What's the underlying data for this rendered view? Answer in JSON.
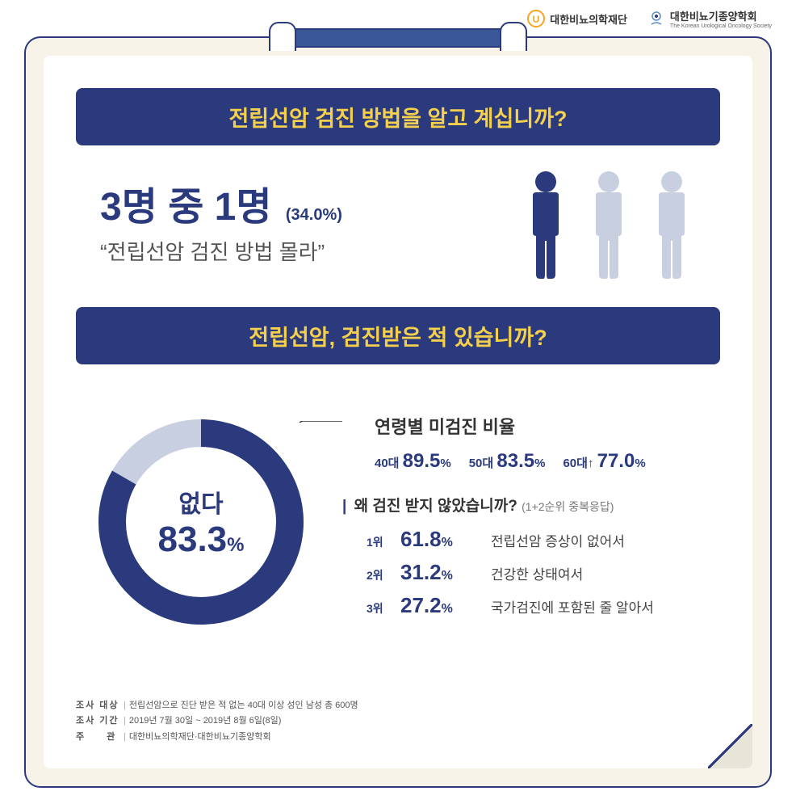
{
  "logos": {
    "left": {
      "name": "대한비뇨의학재단",
      "icon_color": "#f5a623",
      "icon_letter": "U"
    },
    "right": {
      "name": "대한비뇨기종양학회",
      "sub": "The Korean Urological Oncology Society",
      "icon_color": "#5a8fc7"
    }
  },
  "banner1": "전립선암 검진 방법을 알고 계십니까?",
  "section1": {
    "headline": "3명 중 1명",
    "percent": "(34.0%)",
    "quote": "“전립선암 검진 방법 몰라”",
    "people": {
      "count": 3,
      "filled": 1,
      "filled_color": "#2a3a7c",
      "empty_color": "#c8cfe0"
    }
  },
  "banner2": "전립선암, 검진받은 적 있습니까?",
  "donut": {
    "label": "없다",
    "value": "83.3",
    "unit": "%",
    "percentage": 83.3,
    "fill_color": "#2a3a7c",
    "empty_color": "#c8cfe0",
    "stroke_width": 34
  },
  "age_stats": {
    "heading": "연령별 미검진 비율",
    "items": [
      {
        "label": "40대",
        "value": "89.5",
        "unit": "%"
      },
      {
        "label": "50대",
        "value": "83.5",
        "unit": "%"
      },
      {
        "label": "60대↑",
        "value": "77.0",
        "unit": "%"
      }
    ]
  },
  "reasons": {
    "heading": "왜 검진 받지 않았습니까?",
    "note": "(1+2순위 중복응답)",
    "items": [
      {
        "rank": "1위",
        "pct": "61.8",
        "text": "전립선암 증상이 없어서"
      },
      {
        "rank": "2위",
        "pct": "31.2",
        "text": "건강한 상태여서"
      },
      {
        "rank": "3위",
        "pct": "27.2",
        "text": "국가검진에 포함된 줄 알아서"
      }
    ]
  },
  "footer": {
    "target_label": "조사 대상",
    "target": "전립선암으로 진단 받은 적 없는 40대 이상 성인 남성 총 600명",
    "period_label": "조사 기간",
    "period": "2019년 7월 30일 ~ 2019년 8월 6일(8일)",
    "org_label": "주　　관",
    "org": "대한비뇨의학재단·대한비뇨기종양학회"
  },
  "colors": {
    "primary": "#2a3a7c",
    "accent": "#f5d04c",
    "paper": "#ffffff",
    "clipboard": "#f7f3e8",
    "light": "#c8cfe0"
  }
}
